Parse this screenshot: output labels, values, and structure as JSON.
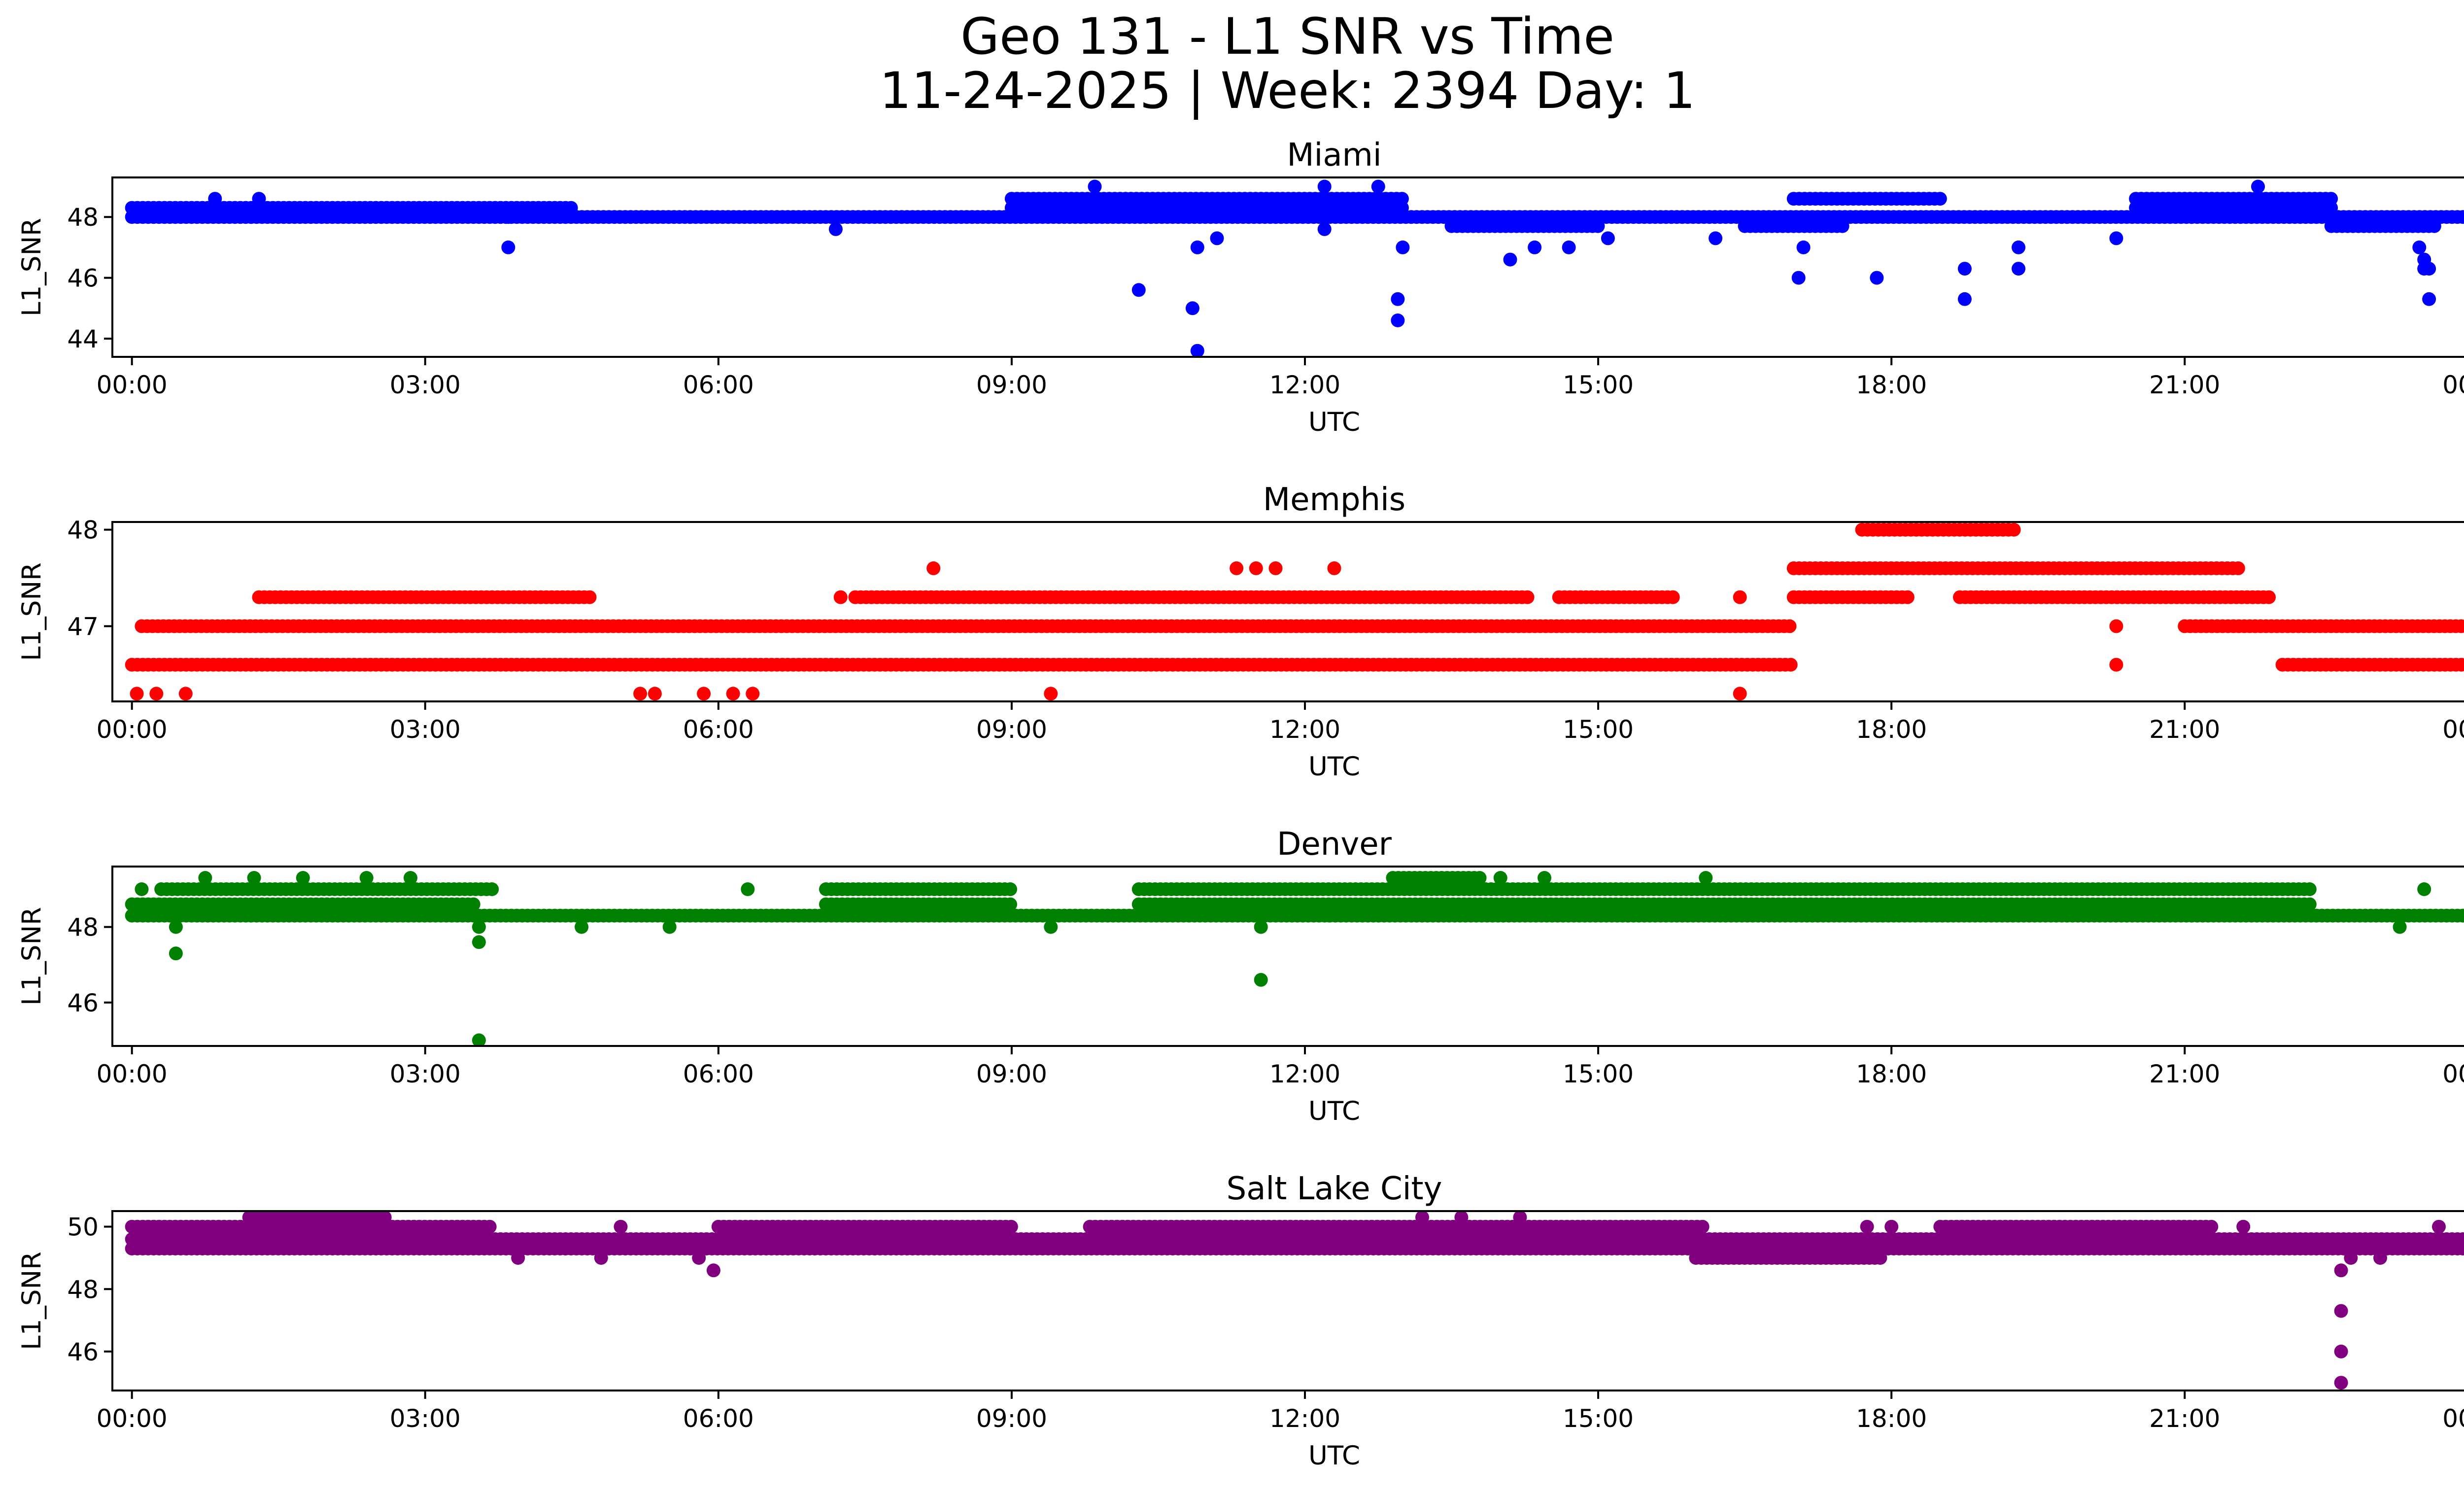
{
  "figure": {
    "title_line1": "Geo 131 - L1 SNR vs Time",
    "title_line2": "11-24-2025 | Week: 2394 Day: 1"
  },
  "chart_data": [
    {
      "type": "scatter",
      "title": "Miami",
      "xlabel": "UTC",
      "ylabel": "L1_SNR",
      "color": "#0000ff",
      "xlim": [
        -0.2,
        24.8
      ],
      "ylim": [
        43.4,
        49.3
      ],
      "xticks": [
        0,
        3,
        6,
        9,
        12,
        15,
        18,
        21,
        24
      ],
      "xtick_labels": [
        "00:00",
        "03:00",
        "06:00",
        "09:00",
        "12:00",
        "15:00",
        "18:00",
        "21:00",
        "00:00"
      ],
      "yticks": [
        44,
        46,
        48
      ],
      "ytick_labels": [
        "44",
        "46",
        "48"
      ],
      "bands": [
        {
          "from": 0.0,
          "to": 24.0,
          "value": 48.0
        },
        {
          "from": 0.0,
          "to": 4.5,
          "value": 48.3
        },
        {
          "from": 9.0,
          "to": 13.0,
          "value": 48.3
        },
        {
          "from": 9.0,
          "to": 13.0,
          "value": 48.6
        },
        {
          "from": 17.0,
          "to": 18.5,
          "value": 48.6
        },
        {
          "from": 20.5,
          "to": 22.5,
          "value": 48.3
        },
        {
          "from": 20.5,
          "to": 22.5,
          "value": 48.6
        },
        {
          "from": 22.5,
          "to": 23.6,
          "value": 47.7
        },
        {
          "from": 13.5,
          "to": 15.0,
          "value": 47.7
        },
        {
          "from": 16.5,
          "to": 17.5,
          "value": 47.7
        }
      ],
      "outliers": [
        {
          "x": 0.85,
          "y": 48.6
        },
        {
          "x": 1.3,
          "y": 48.6
        },
        {
          "x": 3.85,
          "y": 47.0
        },
        {
          "x": 3.85,
          "y": 48.0
        },
        {
          "x": 7.2,
          "y": 47.6
        },
        {
          "x": 9.85,
          "y": 49.0
        },
        {
          "x": 10.3,
          "y": 45.6
        },
        {
          "x": 10.85,
          "y": 45.0
        },
        {
          "x": 10.9,
          "y": 43.6
        },
        {
          "x": 10.9,
          "y": 47.0
        },
        {
          "x": 11.1,
          "y": 47.3
        },
        {
          "x": 12.2,
          "y": 49.0
        },
        {
          "x": 12.2,
          "y": 47.6
        },
        {
          "x": 12.75,
          "y": 49.0
        },
        {
          "x": 12.95,
          "y": 45.3
        },
        {
          "x": 12.95,
          "y": 44.6
        },
        {
          "x": 13.0,
          "y": 47.0
        },
        {
          "x": 14.1,
          "y": 46.6
        },
        {
          "x": 14.35,
          "y": 47.0
        },
        {
          "x": 14.7,
          "y": 47.0
        },
        {
          "x": 15.1,
          "y": 47.3
        },
        {
          "x": 16.2,
          "y": 47.3
        },
        {
          "x": 17.05,
          "y": 46.0
        },
        {
          "x": 17.1,
          "y": 47.0
        },
        {
          "x": 17.85,
          "y": 46.0
        },
        {
          "x": 18.75,
          "y": 46.3
        },
        {
          "x": 18.75,
          "y": 45.3
        },
        {
          "x": 19.3,
          "y": 47.0
        },
        {
          "x": 19.3,
          "y": 46.3
        },
        {
          "x": 20.3,
          "y": 47.3
        },
        {
          "x": 21.75,
          "y": 49.0
        },
        {
          "x": 23.4,
          "y": 47.0
        },
        {
          "x": 23.45,
          "y": 46.6
        },
        {
          "x": 23.45,
          "y": 46.3
        },
        {
          "x": 23.5,
          "y": 45.3
        },
        {
          "x": 23.5,
          "y": 46.3
        }
      ]
    },
    {
      "type": "scatter",
      "title": "Memphis",
      "xlabel": "UTC",
      "ylabel": "L1_SNR",
      "color": "#ff0000",
      "xlim": [
        -0.2,
        24.8
      ],
      "ylim": [
        46.22,
        48.08
      ],
      "xticks": [
        0,
        3,
        6,
        9,
        12,
        15,
        18,
        21,
        24
      ],
      "xtick_labels": [
        "00:00",
        "03:00",
        "06:00",
        "09:00",
        "12:00",
        "15:00",
        "18:00",
        "21:00",
        "00:00"
      ],
      "yticks": [
        47,
        48
      ],
      "ytick_labels": [
        "47",
        "48"
      ],
      "bands": [
        {
          "from": 0.0,
          "to": 17.0,
          "value": 46.6
        },
        {
          "from": 0.1,
          "to": 17.0,
          "value": 47.0
        },
        {
          "from": 1.3,
          "to": 4.7,
          "value": 47.3
        },
        {
          "from": 7.4,
          "to": 14.3,
          "value": 47.3
        },
        {
          "from": 14.6,
          "to": 15.8,
          "value": 47.3
        },
        {
          "from": 17.0,
          "to": 18.2,
          "value": 47.3
        },
        {
          "from": 17.0,
          "to": 21.6,
          "value": 47.6
        },
        {
          "from": 17.7,
          "to": 19.3,
          "value": 48.0
        },
        {
          "from": 18.7,
          "to": 21.9,
          "value": 47.3
        },
        {
          "from": 21.0,
          "to": 24.0,
          "value": 47.0
        },
        {
          "from": 22.0,
          "to": 24.0,
          "value": 46.6
        }
      ],
      "outliers": [
        {
          "x": 0.05,
          "y": 46.3
        },
        {
          "x": 0.25,
          "y": 46.3
        },
        {
          "x": 0.55,
          "y": 46.3
        },
        {
          "x": 5.2,
          "y": 46.3
        },
        {
          "x": 5.35,
          "y": 46.3
        },
        {
          "x": 5.85,
          "y": 46.3
        },
        {
          "x": 6.15,
          "y": 46.3
        },
        {
          "x": 6.35,
          "y": 46.3
        },
        {
          "x": 9.4,
          "y": 46.3
        },
        {
          "x": 8.2,
          "y": 47.6
        },
        {
          "x": 11.3,
          "y": 47.6
        },
        {
          "x": 11.5,
          "y": 47.6
        },
        {
          "x": 11.7,
          "y": 47.6
        },
        {
          "x": 12.3,
          "y": 47.6
        },
        {
          "x": 16.45,
          "y": 46.3
        },
        {
          "x": 16.45,
          "y": 47.3
        },
        {
          "x": 20.3,
          "y": 47.0
        },
        {
          "x": 20.3,
          "y": 46.6
        },
        {
          "x": 7.25,
          "y": 47.3
        }
      ]
    },
    {
      "type": "scatter",
      "title": "Denver",
      "xlabel": "UTC",
      "ylabel": "L1_SNR",
      "color": "#008000",
      "xlim": [
        -0.2,
        24.8
      ],
      "ylim": [
        44.85,
        49.6
      ],
      "xticks": [
        0,
        3,
        6,
        9,
        12,
        15,
        18,
        21,
        24
      ],
      "xtick_labels": [
        "00:00",
        "03:00",
        "06:00",
        "09:00",
        "12:00",
        "15:00",
        "18:00",
        "21:00",
        "00:00"
      ],
      "yticks": [
        46,
        48
      ],
      "ytick_labels": [
        "46",
        "48"
      ],
      "bands": [
        {
          "from": 0.0,
          "to": 3.5,
          "value": 48.6
        },
        {
          "from": 0.0,
          "to": 24.0,
          "value": 48.3
        },
        {
          "from": 0.3,
          "to": 3.7,
          "value": 49.0
        },
        {
          "from": 7.1,
          "to": 9.0,
          "value": 48.6
        },
        {
          "from": 7.1,
          "to": 9.0,
          "value": 49.0
        },
        {
          "from": 10.3,
          "to": 22.3,
          "value": 48.6
        },
        {
          "from": 10.3,
          "to": 22.3,
          "value": 49.0
        },
        {
          "from": 12.9,
          "to": 13.8,
          "value": 49.3
        }
      ],
      "outliers": [
        {
          "x": 0.1,
          "y": 49.0
        },
        {
          "x": 0.45,
          "y": 48.0
        },
        {
          "x": 0.45,
          "y": 47.3
        },
        {
          "x": 0.75,
          "y": 49.3
        },
        {
          "x": 1.25,
          "y": 49.3
        },
        {
          "x": 1.75,
          "y": 49.3
        },
        {
          "x": 2.4,
          "y": 49.3
        },
        {
          "x": 2.85,
          "y": 49.3
        },
        {
          "x": 3.55,
          "y": 48.0
        },
        {
          "x": 3.55,
          "y": 47.6
        },
        {
          "x": 3.55,
          "y": 45.0
        },
        {
          "x": 4.6,
          "y": 48.0
        },
        {
          "x": 5.5,
          "y": 48.0
        },
        {
          "x": 6.3,
          "y": 49.0
        },
        {
          "x": 9.4,
          "y": 48.0
        },
        {
          "x": 11.55,
          "y": 48.0
        },
        {
          "x": 11.55,
          "y": 46.6
        },
        {
          "x": 12.25,
          "y": 48.3
        },
        {
          "x": 14.0,
          "y": 49.3
        },
        {
          "x": 14.45,
          "y": 49.3
        },
        {
          "x": 16.1,
          "y": 49.3
        },
        {
          "x": 23.2,
          "y": 48.0
        },
        {
          "x": 23.45,
          "y": 49.0
        }
      ]
    },
    {
      "type": "scatter",
      "title": "Salt Lake City",
      "xlabel": "UTC",
      "ylabel": "L1_SNR",
      "color": "#800080",
      "xlim": [
        -0.2,
        24.8
      ],
      "ylim": [
        44.75,
        50.5
      ],
      "xticks": [
        0,
        3,
        6,
        9,
        12,
        15,
        18,
        21,
        24
      ],
      "xtick_labels": [
        "00:00",
        "03:00",
        "06:00",
        "09:00",
        "12:00",
        "15:00",
        "18:00",
        "21:00",
        "00:00"
      ],
      "yticks": [
        46,
        48,
        50
      ],
      "ytick_labels": [
        "46",
        "48",
        "50"
      ],
      "bands": [
        {
          "from": 0.0,
          "to": 24.0,
          "value": 49.3
        },
        {
          "from": 0.0,
          "to": 24.0,
          "value": 49.6
        },
        {
          "from": 0.0,
          "to": 3.7,
          "value": 50.0
        },
        {
          "from": 6.0,
          "to": 9.0,
          "value": 50.0
        },
        {
          "from": 9.8,
          "to": 16.1,
          "value": 50.0
        },
        {
          "from": 18.5,
          "to": 21.3,
          "value": 50.0
        },
        {
          "from": 1.2,
          "to": 2.6,
          "value": 50.3
        },
        {
          "from": 16.0,
          "to": 17.9,
          "value": 49.0
        }
      ],
      "outliers": [
        {
          "x": 3.95,
          "y": 49.0
        },
        {
          "x": 4.8,
          "y": 49.0
        },
        {
          "x": 5.0,
          "y": 50.0
        },
        {
          "x": 5.8,
          "y": 49.0
        },
        {
          "x": 5.95,
          "y": 48.6
        },
        {
          "x": 13.2,
          "y": 50.3
        },
        {
          "x": 13.6,
          "y": 50.3
        },
        {
          "x": 14.2,
          "y": 50.3
        },
        {
          "x": 17.75,
          "y": 50.0
        },
        {
          "x": 18.0,
          "y": 50.0
        },
        {
          "x": 21.6,
          "y": 50.0
        },
        {
          "x": 22.6,
          "y": 48.6
        },
        {
          "x": 22.6,
          "y": 47.3
        },
        {
          "x": 22.6,
          "y": 46.0
        },
        {
          "x": 22.6,
          "y": 45.0
        },
        {
          "x": 22.7,
          "y": 49.0
        },
        {
          "x": 23.0,
          "y": 49.0
        },
        {
          "x": 23.6,
          "y": 50.0
        }
      ]
    }
  ]
}
